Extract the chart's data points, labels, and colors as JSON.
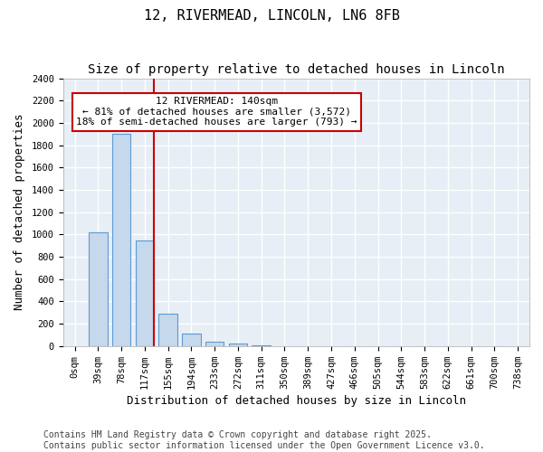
{
  "title": "12, RIVERMEAD, LINCOLN, LN6 8FB",
  "subtitle": "Size of property relative to detached houses in Lincoln",
  "xlabel": "Distribution of detached houses by size in Lincoln",
  "ylabel": "Number of detached properties",
  "bar_color": "#c5d8ec",
  "bar_edge_color": "#5b9bd5",
  "background_color": "#e8eef5",
  "grid_color": "white",
  "annotation_box_color": "#cc0000",
  "annotation_line_color": "#cc0000",
  "bins": [
    "0sqm",
    "39sqm",
    "78sqm",
    "117sqm",
    "155sqm",
    "194sqm",
    "233sqm",
    "272sqm",
    "311sqm",
    "350sqm",
    "389sqm",
    "427sqm",
    "466sqm",
    "505sqm",
    "544sqm",
    "583sqm",
    "622sqm",
    "661sqm",
    "700sqm",
    "738sqm"
  ],
  "values": [
    0,
    1020,
    1900,
    950,
    290,
    115,
    40,
    20,
    5,
    2,
    0,
    0,
    0,
    0,
    0,
    0,
    0,
    0,
    0,
    0
  ],
  "ylim": [
    0,
    2400
  ],
  "yticks": [
    0,
    200,
    400,
    600,
    800,
    1000,
    1200,
    1400,
    1600,
    1800,
    2000,
    2200,
    2400
  ],
  "red_line_bin": 3,
  "annotation_text_line1": "12 RIVERMEAD: 140sqm",
  "annotation_text_line2": "← 81% of detached houses are smaller (3,572)",
  "annotation_text_line3": "18% of semi-detached houses are larger (793) →",
  "footer_text": "Contains HM Land Registry data © Crown copyright and database right 2025.\nContains public sector information licensed under the Open Government Licence v3.0.",
  "title_fontsize": 11,
  "subtitle_fontsize": 10,
  "xlabel_fontsize": 9,
  "ylabel_fontsize": 9,
  "tick_fontsize": 7.5,
  "annotation_fontsize": 8,
  "footer_fontsize": 7
}
